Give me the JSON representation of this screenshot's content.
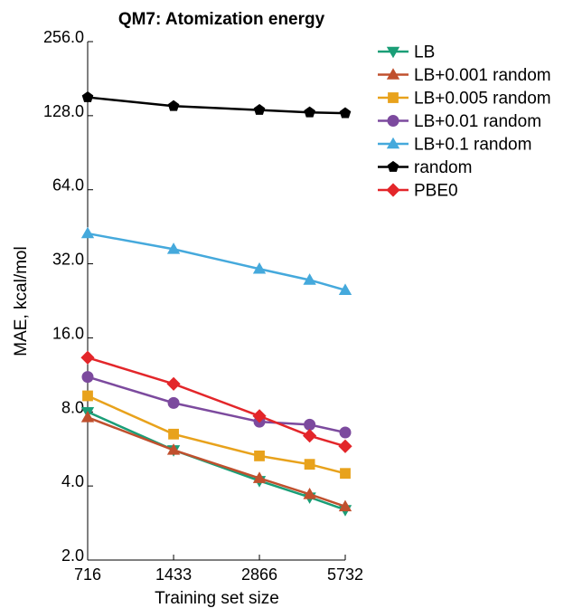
{
  "chart_data": {
    "type": "line",
    "title": "QM7: Atomization energy",
    "xlabel": "Training set size",
    "ylabel": "MAE, kcal/mol",
    "x_scale": "log2",
    "y_scale": "log2",
    "xlim": [
      716,
      5732
    ],
    "ylim": [
      2.0,
      256.0
    ],
    "x_ticks": [
      716,
      1433,
      2866,
      5732
    ],
    "x_tick_labels": [
      "716",
      "1433",
      "2866",
      "5732"
    ],
    "y_ticks": [
      2.0,
      4.0,
      8.0,
      16.0,
      32.0,
      64.0,
      128.0,
      256.0
    ],
    "y_tick_labels": [
      "2.0",
      "4.0",
      "8.0",
      "16.0",
      "32.0",
      "64.0",
      "128.0",
      "256.0"
    ],
    "x": [
      716,
      1433,
      2866,
      4300,
      5732
    ],
    "grid": false,
    "legend_position": "outside-right-top",
    "series": [
      {
        "name": "LB",
        "color": "#1a9e77",
        "marker": "triangle-down",
        "values": [
          8.0,
          5.6,
          4.2,
          3.6,
          3.2
        ]
      },
      {
        "name": "LB+0.001 random",
        "color": "#c0502e",
        "marker": "triangle-up",
        "values": [
          7.6,
          5.6,
          4.3,
          3.7,
          3.3
        ]
      },
      {
        "name": "LB+0.005 random",
        "color": "#e8a21c",
        "marker": "square",
        "values": [
          9.3,
          6.5,
          5.3,
          4.9,
          4.5
        ]
      },
      {
        "name": "LB+0.01 random",
        "color": "#7c4a9e",
        "marker": "circle",
        "values": [
          11.1,
          8.7,
          7.3,
          7.1,
          6.6
        ]
      },
      {
        "name": "LB+0.1 random",
        "color": "#45a9dc",
        "marker": "triangle-up",
        "values": [
          42.5,
          36.7,
          30.5,
          27.5,
          25.0
        ]
      },
      {
        "name": "random",
        "color": "#000000",
        "marker": "pentagon",
        "values": [
          152.0,
          140.0,
          135.0,
          132.0,
          131.0
        ]
      },
      {
        "name": "PBE0",
        "color": "#e3262a",
        "marker": "diamond",
        "values": [
          13.3,
          10.4,
          7.7,
          6.4,
          5.8
        ]
      }
    ]
  }
}
